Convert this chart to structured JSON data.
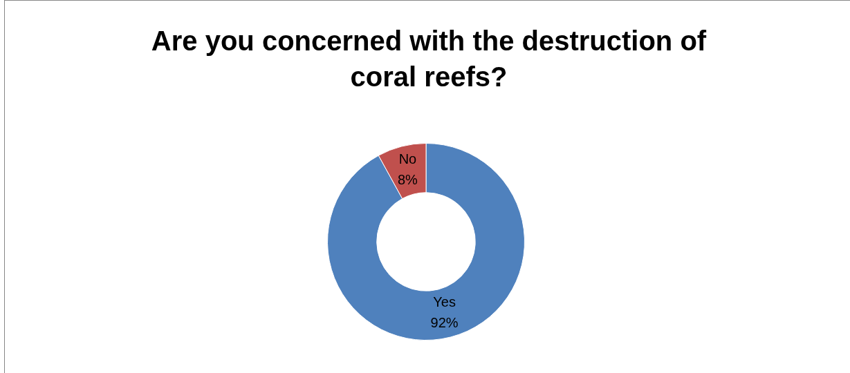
{
  "chart_data": {
    "type": "donut",
    "title": "Are you concerned with the destruction of coral reefs?",
    "categories": [
      "Yes",
      "No"
    ],
    "values": [
      92,
      8
    ],
    "colors": [
      "#4f81bd",
      "#c0504d"
    ],
    "value_labels": [
      "92%",
      "8%"
    ]
  }
}
